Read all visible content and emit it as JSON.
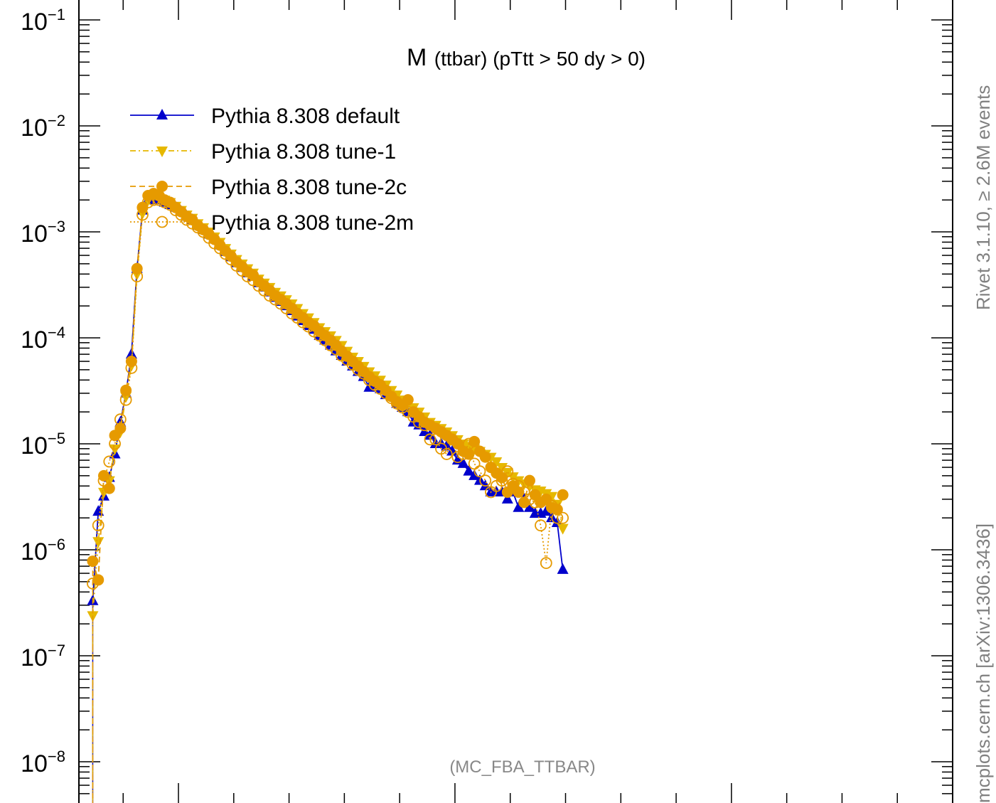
{
  "chart_data": {
    "type": "line",
    "title_main": "M",
    "title_sub": "(ttbar) (pTtt > 50 dy > 0)",
    "xlabel": "",
    "ylabel": "",
    "y_scale": "log",
    "xlim": [
      320,
      1900
    ],
    "ylim": [
      3e-09,
      0.1
    ],
    "y_tick_labels": [
      {
        "base": "10",
        "exp": "−1",
        "value": 0.1
      },
      {
        "base": "10",
        "exp": "−2",
        "value": 0.01
      },
      {
        "base": "10",
        "exp": "−3",
        "value": 0.001
      },
      {
        "base": "10",
        "exp": "−4",
        "value": 0.0001
      },
      {
        "base": "10",
        "exp": "−5",
        "value": 1e-05
      },
      {
        "base": "10",
        "exp": "−6",
        "value": 1e-06
      },
      {
        "base": "10",
        "exp": "−7",
        "value": 1e-07
      },
      {
        "base": "10",
        "exp": "−8",
        "value": 1e-08
      }
    ],
    "legend_position": "top-left",
    "grid": false,
    "x": [
      330,
      340,
      350,
      360,
      370,
      380,
      390,
      400,
      410,
      420,
      430,
      440,
      450,
      460,
      470,
      480,
      490,
      500,
      510,
      520,
      530,
      540,
      550,
      560,
      570,
      580,
      590,
      600,
      610,
      620,
      630,
      640,
      650,
      660,
      670,
      680,
      690,
      700,
      710,
      720,
      730,
      740,
      750,
      760,
      770,
      780,
      790,
      800,
      810,
      820,
      830,
      840,
      850,
      860,
      870,
      880,
      890,
      900,
      910,
      920,
      930,
      940,
      950,
      960,
      970,
      980,
      990,
      1000,
      1010,
      1020,
      1030,
      1040,
      1050,
      1060,
      1070,
      1080,
      1090,
      1100,
      1110,
      1120,
      1130,
      1140,
      1150,
      1160,
      1170,
      1180,
      1190,
      1200,
      1210,
      1220,
      1230,
      1240,
      1250,
      1260,
      1270,
      1280,
      1290,
      1300,
      1310,
      1320,
      1330,
      1340,
      1350,
      1360,
      1370,
      1380,
      1390,
      1400,
      1410,
      1420,
      1430,
      1440,
      1450,
      1460,
      1470,
      1480,
      1490,
      1500,
      1510,
      1520,
      1530,
      1540,
      1550,
      1560,
      1570,
      1580,
      1590,
      1600,
      1610,
      1620,
      1630,
      1640,
      1650,
      1660,
      1670,
      1680,
      1690,
      1700,
      1710,
      1720,
      1730,
      1740,
      1750,
      1760,
      1770,
      1780,
      1790,
      1800,
      1810,
      1820,
      1830,
      1840,
      1850,
      1860,
      1870,
      1880,
      1890
    ],
    "series": [
      {
        "name": "Pythia 8.308 default",
        "color": "#0000cc",
        "marker": "triangle-up-filled",
        "line": "solid",
        "x": [
          345,
          355,
          365,
          375,
          385,
          395,
          405,
          415,
          425,
          435,
          445,
          455,
          465,
          475,
          485,
          495,
          505,
          515,
          525,
          535,
          545,
          555,
          565,
          575,
          585,
          595,
          605,
          615,
          625,
          635,
          645,
          655,
          665,
          675,
          685,
          695,
          705,
          715,
          725,
          735,
          745,
          755,
          765,
          775,
          785,
          795,
          805,
          815,
          825,
          835,
          845,
          855,
          865,
          875,
          885,
          895,
          905,
          915,
          925,
          935,
          945,
          955,
          965,
          975,
          985,
          995,
          1005,
          1015,
          1025,
          1035,
          1045,
          1055,
          1065,
          1075,
          1085,
          1095,
          1105,
          1115,
          1125,
          1135,
          1145,
          1155,
          1165,
          1175,
          1185,
          1195
        ],
        "y": [
          3.3e-07,
          2.3e-06,
          3.2e-06,
          4.8e-06,
          8e-06,
          1.6e-05,
          3e-05,
          7e-05,
          0.00045,
          0.0016,
          0.002,
          0.0021,
          0.002,
          0.0019,
          0.0018,
          0.0017,
          0.00155,
          0.0014,
          0.0013,
          0.00115,
          0.00105,
          0.00095,
          0.00085,
          0.00075,
          0.00065,
          0.00058,
          0.00051,
          0.00046,
          0.00041,
          0.00038,
          0.00033,
          0.0003,
          0.00027,
          0.00024,
          0.00022,
          0.0002,
          0.00018,
          0.00016,
          0.000145,
          0.00013,
          0.00012,
          0.000105,
          9.5e-05,
          8.5e-05,
          7.5e-05,
          6.8e-05,
          6e-05,
          5.4e-05,
          4.8e-05,
          4.3e-05,
          3.4e-05,
          3.6e-05,
          3.3e-05,
          2.9e-05,
          2.8e-05,
          2.4e-05,
          2.2e-05,
          2e-05,
          1.6e-05,
          1.5e-05,
          1.3e-05,
          1.2e-05,
          1e-05,
          1e-05,
          9.5e-06,
          8.5e-06,
          7e-06,
          6.5e-06,
          5.5e-06,
          5e-06,
          4.5e-06,
          4e-06,
          3.5e-06,
          3.5e-06,
          3.5e-06,
          3e-06,
          3.5e-06,
          2.5e-06,
          3e-06,
          2.5e-06,
          2.2e-06,
          2.2e-06,
          2.3e-06,
          2e-06,
          1.8e-06,
          6.5e-07
        ]
      },
      {
        "name": "Pythia 8.308 tune-1",
        "color": "#e6b800",
        "marker": "triangle-down-filled",
        "line": "dash-dot",
        "x": [
          345,
          355,
          365,
          375,
          385,
          395,
          405,
          415,
          425,
          435,
          445,
          455,
          465,
          475,
          485,
          495,
          505,
          515,
          525,
          535,
          545,
          555,
          565,
          575,
          585,
          595,
          605,
          615,
          625,
          635,
          645,
          655,
          665,
          675,
          685,
          695,
          705,
          715,
          725,
          735,
          745,
          755,
          765,
          775,
          785,
          795,
          805,
          815,
          825,
          835,
          845,
          855,
          865,
          875,
          885,
          895,
          905,
          915,
          925,
          935,
          945,
          955,
          965,
          975,
          985,
          995,
          1005,
          1015,
          1025,
          1035,
          1045,
          1055,
          1065,
          1075,
          1085,
          1095,
          1105,
          1115,
          1125,
          1135,
          1145,
          1155,
          1165,
          1175,
          1185,
          1195
        ],
        "y": [
          2.4e-07,
          1.2e-06,
          3.5e-06,
          4.5e-06,
          9e-06,
          1.3e-05,
          2.8e-05,
          5.5e-05,
          0.0004,
          0.0015,
          0.002,
          0.0022,
          0.0021,
          0.002,
          0.0019,
          0.00175,
          0.0016,
          0.00145,
          0.00135,
          0.0012,
          0.0011,
          0.001,
          0.0009,
          0.0008,
          0.0007,
          0.00062,
          0.00055,
          0.0005,
          0.00045,
          0.00041,
          0.00036,
          0.00033,
          0.0003,
          0.00027,
          0.00025,
          0.00023,
          0.00021,
          0.00019,
          0.00017,
          0.000155,
          0.00014,
          0.000125,
          0.000115,
          0.000105,
          9.5e-05,
          8.5e-05,
          7.5e-05,
          6.6e-05,
          6e-05,
          5.4e-05,
          4.8e-05,
          4.4e-05,
          4e-05,
          3.6e-05,
          3.2e-05,
          2.9e-05,
          2.6e-05,
          2.4e-05,
          2.2e-05,
          2e-05,
          1.8e-05,
          1.6e-05,
          1.5e-05,
          1.4e-05,
          1.3e-05,
          1.2e-05,
          1.1e-05,
          1e-05,
          9.5e-06,
          9e-06,
          8.5e-06,
          8e-06,
          7.5e-06,
          6.8e-06,
          6e-06,
          5.4e-06,
          4.9e-06,
          4.5e-06,
          4.2e-06,
          4e-06,
          3.7e-06,
          3.6e-06,
          3.4e-06,
          3.2e-06,
          2.7e-06,
          1.6e-06
        ]
      },
      {
        "name": "Pythia 8.308 tune-2c",
        "color": "#e69a00",
        "marker": "circle-filled",
        "line": "dashed",
        "x": [
          345,
          355,
          365,
          375,
          385,
          395,
          405,
          415,
          425,
          435,
          445,
          455,
          465,
          475,
          485,
          495,
          505,
          515,
          525,
          535,
          545,
          555,
          565,
          575,
          585,
          595,
          605,
          615,
          625,
          635,
          645,
          655,
          665,
          675,
          685,
          695,
          705,
          715,
          725,
          735,
          745,
          755,
          765,
          775,
          785,
          795,
          805,
          815,
          825,
          835,
          845,
          855,
          865,
          875,
          885,
          895,
          905,
          915,
          925,
          935,
          945,
          955,
          965,
          975,
          985,
          995,
          1005,
          1015,
          1025,
          1035,
          1045,
          1055,
          1065,
          1075,
          1085,
          1095,
          1105,
          1115,
          1125,
          1135,
          1145,
          1155,
          1165,
          1175,
          1185,
          1195
        ],
        "y": [
          7.8e-07,
          5.2e-07,
          5e-06,
          3.8e-06,
          1.2e-05,
          1.4e-05,
          3.2e-05,
          6e-05,
          0.00045,
          0.0017,
          0.0022,
          0.0023,
          0.0022,
          0.002,
          0.0019,
          0.0017,
          0.00155,
          0.0014,
          0.0013,
          0.00115,
          0.00105,
          0.00095,
          0.00085,
          0.00075,
          0.00066,
          0.00059,
          0.00052,
          0.00047,
          0.00042,
          0.00039,
          0.00034,
          0.00031,
          0.00028,
          0.00025,
          0.00023,
          0.00021,
          0.00019,
          0.00017,
          0.000155,
          0.00014,
          0.00013,
          0.000115,
          0.000105,
          9.5e-05,
          8.5e-05,
          7.5e-05,
          6.7e-05,
          6e-05,
          5.4e-05,
          4.8e-05,
          4.3e-05,
          3.9e-05,
          3.6e-05,
          3.2e-05,
          2.8e-05,
          2.5e-05,
          2.3e-05,
          2.6e-05,
          2e-05,
          1.8e-05,
          1.6e-05,
          1.5e-05,
          1.4e-05,
          1.3e-05,
          1.2e-05,
          1.1e-05,
          1e-05,
          8.5e-06,
          8e-06,
          1.05e-05,
          8.5e-06,
          7.5e-06,
          6e-06,
          5.3e-06,
          4.8e-06,
          3.5e-06,
          4e-06,
          3.5e-06,
          2.8e-06,
          4.5e-06,
          3.3e-06,
          2.8e-06,
          3e-06,
          2.5e-06,
          2.4e-06,
          3.3e-06
        ]
      },
      {
        "name": "Pythia 8.308 tune-2m",
        "color": "#e69a00",
        "marker": "circle-open",
        "line": "dotted",
        "x": [
          345,
          355,
          365,
          375,
          385,
          395,
          405,
          415,
          425,
          435,
          445,
          455,
          465,
          475,
          485,
          495,
          505,
          515,
          525,
          535,
          545,
          555,
          565,
          575,
          585,
          595,
          605,
          615,
          625,
          635,
          645,
          655,
          665,
          675,
          685,
          695,
          705,
          715,
          725,
          735,
          745,
          755,
          765,
          775,
          785,
          795,
          805,
          815,
          825,
          835,
          845,
          855,
          865,
          875,
          885,
          895,
          905,
          915,
          925,
          935,
          945,
          955,
          965,
          975,
          985,
          995,
          1005,
          1015,
          1025,
          1035,
          1045,
          1055,
          1065,
          1075,
          1085,
          1095,
          1105,
          1115,
          1125,
          1135,
          1145,
          1155,
          1165,
          1175,
          1185,
          1195
        ],
        "y": [
          4.8e-07,
          1.7e-06,
          4.5e-06,
          6.8e-06,
          1e-05,
          1.7e-05,
          2.6e-05,
          5.2e-05,
          0.00038,
          0.00145,
          0.0019,
          0.002,
          0.002,
          0.0019,
          0.0018,
          0.0016,
          0.00145,
          0.0013,
          0.0012,
          0.0011,
          0.001,
          0.00088,
          0.00078,
          0.0007,
          0.00062,
          0.00055,
          0.00048,
          0.00043,
          0.00038,
          0.00035,
          0.00031,
          0.00028,
          0.00025,
          0.00023,
          0.00021,
          0.00019,
          0.00017,
          0.000155,
          0.00014,
          0.000128,
          0.000115,
          0.000105,
          9.5e-05,
          8.5e-05,
          7.8e-05,
          6.8e-05,
          6.2e-05,
          5.6e-05,
          5e-05,
          4.6e-05,
          4e-05,
          3.6e-05,
          3.3e-05,
          3e-05,
          2.7e-05,
          2.4e-05,
          2.2e-05,
          2e-05,
          1.8e-05,
          1.6e-05,
          1.5e-05,
          1.1e-05,
          1.1e-05,
          9e-06,
          8e-06,
          1.1e-05,
          7.5e-06,
          8e-06,
          1e-05,
          6.5e-06,
          5.5e-06,
          4.5e-06,
          3.5e-06,
          4e-06,
          4.5e-06,
          5.5e-06,
          4.2e-06,
          4e-06,
          3.5e-06,
          3e-06,
          2.8e-06,
          1.7e-06,
          7.5e-07,
          2.6e-06,
          2e-06,
          2e-06
        ]
      }
    ],
    "side_label_top": "Rivet 3.1.10, ≥ 2.6M events",
    "side_label_bottom": "mcplots.cern.ch [arXiv:1306.3436]",
    "analysis_label": "(MC_FBA_TTBAR)"
  }
}
